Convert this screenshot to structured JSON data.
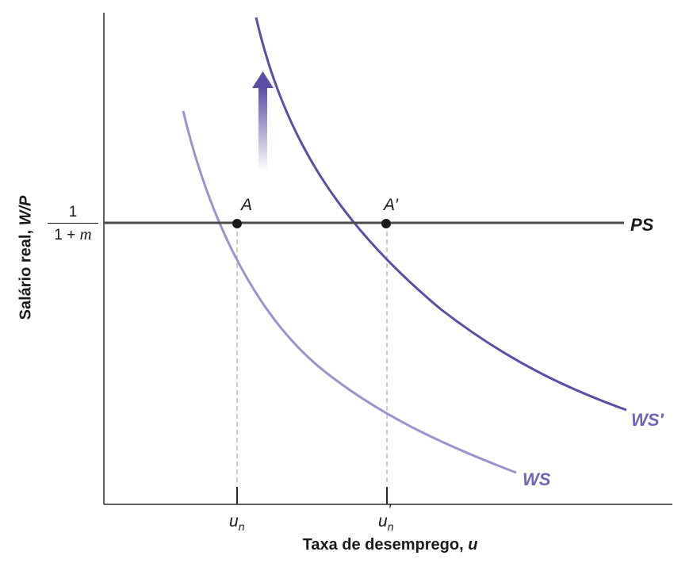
{
  "axes": {
    "y_label_text": "Salário real, ",
    "y_label_var": "W/P",
    "x_label_text": "Taxa de desemprego, ",
    "x_label_var": "u",
    "y_tick_numerator": "1",
    "y_tick_denominator": "1 + ",
    "y_tick_denominator_var": "m"
  },
  "ticks": {
    "un_base": "u",
    "un_sub": "n",
    "un_prime_base": "u",
    "un_prime_sub": "n",
    "un_prime_mark": "′"
  },
  "curves": {
    "ws_label": "WS",
    "ws_prime_label": "WS′",
    "ps_label": "PS"
  },
  "points": {
    "a_label": "A",
    "a_prime_label": "A′"
  },
  "colors": {
    "axis": "#2b2b2b",
    "ps_line": "#4a4a4a",
    "ws": "#9b93cc",
    "ws_prime": "#5a4ea6",
    "ws_label": "#6e64b8",
    "arrow_top": "#5a4ea6",
    "guide": "#999999"
  }
}
